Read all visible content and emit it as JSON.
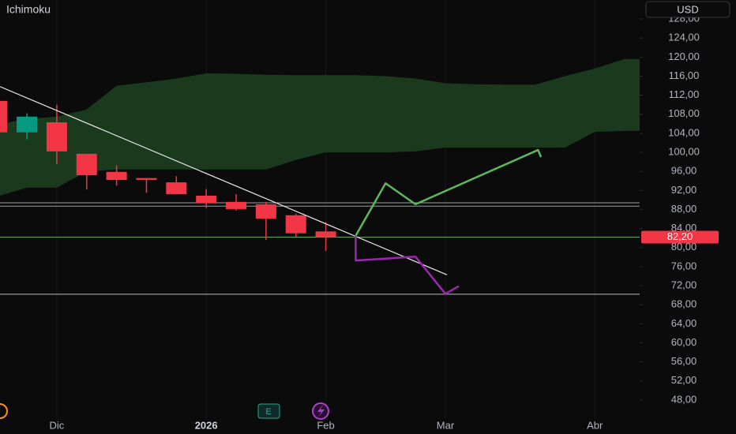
{
  "chart_data": {
    "type": "candlestick",
    "title": "Ichimoku",
    "currency": "USD",
    "up_color": "#089981",
    "down_color": "#f23645",
    "xlim": [
      -0.9,
      20.5
    ],
    "xticks": [
      {
        "value": 1,
        "label": "Dic"
      },
      {
        "value": 6,
        "label": "2026"
      },
      {
        "value": 10,
        "label": "Feb"
      },
      {
        "value": 14,
        "label": "Mar"
      },
      {
        "value": 19,
        "label": "Abr"
      }
    ],
    "ylim": [
      46,
      130
    ],
    "yticks": [
      {
        "value": 48,
        "label": "48,00"
      },
      {
        "value": 52,
        "label": "52,00"
      },
      {
        "value": 56,
        "label": "56,00"
      },
      {
        "value": 60,
        "label": "60,00"
      },
      {
        "value": 64,
        "label": "64,00"
      },
      {
        "value": 68,
        "label": "68,00"
      },
      {
        "value": 72,
        "label": "72,00"
      },
      {
        "value": 76,
        "label": "76,00"
      },
      {
        "value": 80,
        "label": "80,00"
      },
      {
        "value": 84,
        "label": "84,00"
      },
      {
        "value": 88,
        "label": "88,00"
      },
      {
        "value": 92,
        "label": "92,00"
      },
      {
        "value": 96,
        "label": "96,00"
      },
      {
        "value": 100,
        "label": "100,00"
      },
      {
        "value": 104,
        "label": "104,00"
      },
      {
        "value": 108,
        "label": "108,00"
      },
      {
        "value": 112,
        "label": "112,00"
      },
      {
        "value": 116,
        "label": "116,00"
      },
      {
        "value": 120,
        "label": "120,00"
      },
      {
        "value": 124,
        "label": "124,00"
      },
      {
        "value": 128,
        "label": "128,00"
      }
    ],
    "candles": {
      "x": [
        -1,
        0,
        1,
        2,
        3,
        4,
        5,
        6,
        7,
        8,
        9,
        10
      ],
      "open": [
        110.8,
        104.2,
        106.3,
        99.7,
        95.9,
        94.6,
        93.7,
        90.9,
        89.6,
        89.1,
        86.8,
        83.4
      ],
      "high": [
        112,
        108.2,
        110,
        99.7,
        97.3,
        94.6,
        95,
        92.3,
        91.2,
        89.6,
        87.1,
        85.3
      ],
      "low": [
        103,
        102.7,
        97.5,
        92.2,
        93.0,
        91.5,
        91.2,
        88.3,
        87.8,
        81.6,
        82.3,
        79.3
      ],
      "close": [
        104.2,
        107.5,
        100.2,
        95.2,
        94.2,
        94.2,
        91.2,
        89.4,
        88.1,
        86.1,
        83.0,
        82.2
      ]
    },
    "cloud": {
      "color": "#1b3a1d",
      "x": [
        -0.9,
        0,
        1,
        2,
        3,
        4,
        5,
        6,
        7,
        8,
        9,
        10,
        11,
        12,
        13,
        14,
        15,
        16,
        17,
        18,
        19,
        20,
        20.5
      ],
      "upper": [
        106,
        107,
        107.5,
        109,
        114,
        114.7,
        115.5,
        116.6,
        116.5,
        116.3,
        116.2,
        116.2,
        116.2,
        116,
        115.5,
        114.5,
        114.3,
        114.2,
        114.2,
        116,
        117.6,
        119.6,
        119.6
      ],
      "lower": [
        90.9,
        92.6,
        92.6,
        96,
        96.4,
        96.4,
        96.4,
        96.4,
        96.4,
        96.4,
        98.4,
        100,
        100,
        100,
        100.2,
        101,
        101,
        101,
        101,
        101,
        104.3,
        104.5,
        104.5
      ]
    },
    "hlines": [
      {
        "value": 89.4,
        "color": "#9e9e9e"
      },
      {
        "value": 88.7,
        "color": "#9e9e9e"
      },
      {
        "value": 82.2,
        "color": "#5fa863"
      },
      {
        "value": 70.2,
        "color": "#bdbdbd"
      }
    ],
    "trendline": {
      "color": "#e8e8e8",
      "x": [
        -0.9,
        14.05
      ],
      "values": [
        113.8,
        74.3
      ]
    },
    "projections": [
      {
        "color": "#5cb85c",
        "x": [
          11,
          12,
          13,
          17.1,
          17.2
        ],
        "values": [
          82.5,
          93.5,
          89.1,
          100.5,
          99.0
        ]
      },
      {
        "color": "#9c27b0",
        "x": [
          11,
          11,
          13,
          14,
          14.45
        ],
        "values": [
          82.5,
          77.3,
          78.1,
          70.3,
          71.9
        ]
      }
    ],
    "last_price": {
      "value": 82.2,
      "label": "82,20"
    },
    "event_marker": "E"
  }
}
